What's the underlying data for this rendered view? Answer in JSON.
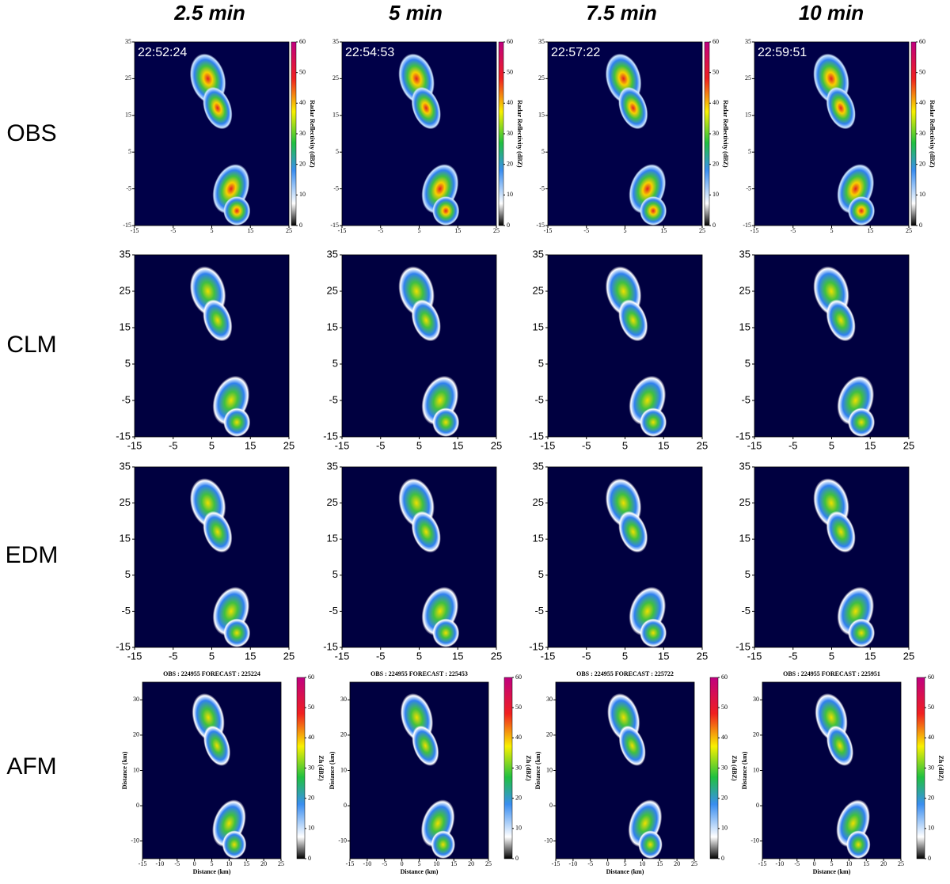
{
  "header": {
    "columns": [
      "2.5 min",
      "5 min",
      "7.5 min",
      "10 min"
    ]
  },
  "rows": [
    {
      "label": "OBS",
      "panels": [
        {
          "stamp": "22:52:24"
        },
        {
          "stamp": "22:54:53"
        },
        {
          "stamp": "22:57:22"
        },
        {
          "stamp": "22:59:51"
        }
      ]
    },
    {
      "label": "CLM"
    },
    {
      "label": "EDM"
    },
    {
      "label": "AFM",
      "panels": [
        {
          "title": "OBS : 224955   FORECAST : 225224"
        },
        {
          "title": "OBS : 224955   FORECAST : 225453"
        },
        {
          "title": "OBS : 224955   FORECAST : 225722"
        },
        {
          "title": "OBS : 224955   FORECAST : 225951"
        }
      ]
    }
  ],
  "axes": {
    "x_ticks": [
      -15,
      -5,
      5,
      15,
      25
    ],
    "y_ticks": [
      35,
      25,
      15,
      5,
      -5,
      -15
    ],
    "colorbar_ticks": [
      0,
      10,
      20,
      30,
      40,
      50,
      60
    ],
    "obs_colorbar_label": "Radar Reflectivity (dBZ)",
    "afm_x_ticks": [
      -15,
      -10,
      -5,
      0,
      5,
      10,
      15,
      20,
      25
    ],
    "afm_y_ticks": [
      30,
      20,
      10,
      0,
      -10
    ],
    "afm_xlim": [
      -15,
      25
    ],
    "afm_ylim": [
      -15,
      35
    ],
    "afm_axis_label": "Distance (km)",
    "afm_colorbar_label": "Zh (dBZ)"
  }
}
